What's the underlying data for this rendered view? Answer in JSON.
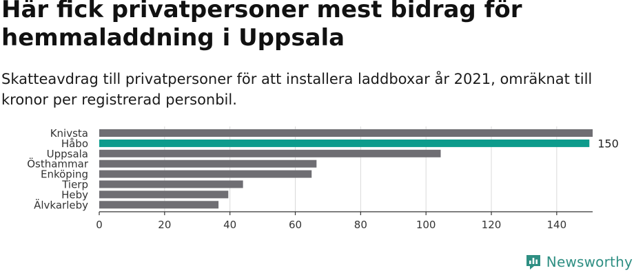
{
  "title": "Här fick privatpersoner mest bidrag för hemmaladdning i Uppsala",
  "subtitle": "Skatteavdrag till privatpersoner för att installera laddboxar år 2021, omräknat till kronor per registrerad personbil.",
  "brand": "Newsworthy",
  "colors": {
    "bar": "#6f6e73",
    "highlight": "#0d9b8c",
    "grid": "#d9d9d9",
    "axis": "#333333",
    "brand": "#2f8f83"
  },
  "chart_data": {
    "type": "bar",
    "orientation": "horizontal",
    "categories": [
      "Knivsta",
      "Håbo",
      "Uppsala",
      "Östhammar",
      "Enköping",
      "Tierp",
      "Heby",
      "Älvkarleby"
    ],
    "values": [
      151,
      150,
      104.5,
      66.5,
      65,
      44,
      39.5,
      36.5
    ],
    "highlight_index": 1,
    "data_labels": [
      {
        "index": 1,
        "text": "150"
      }
    ],
    "xlim": [
      0,
      151
    ],
    "xticks": [
      0,
      20,
      40,
      60,
      80,
      100,
      120,
      140
    ],
    "grid": true,
    "title": "",
    "xlabel": "",
    "ylabel": ""
  }
}
